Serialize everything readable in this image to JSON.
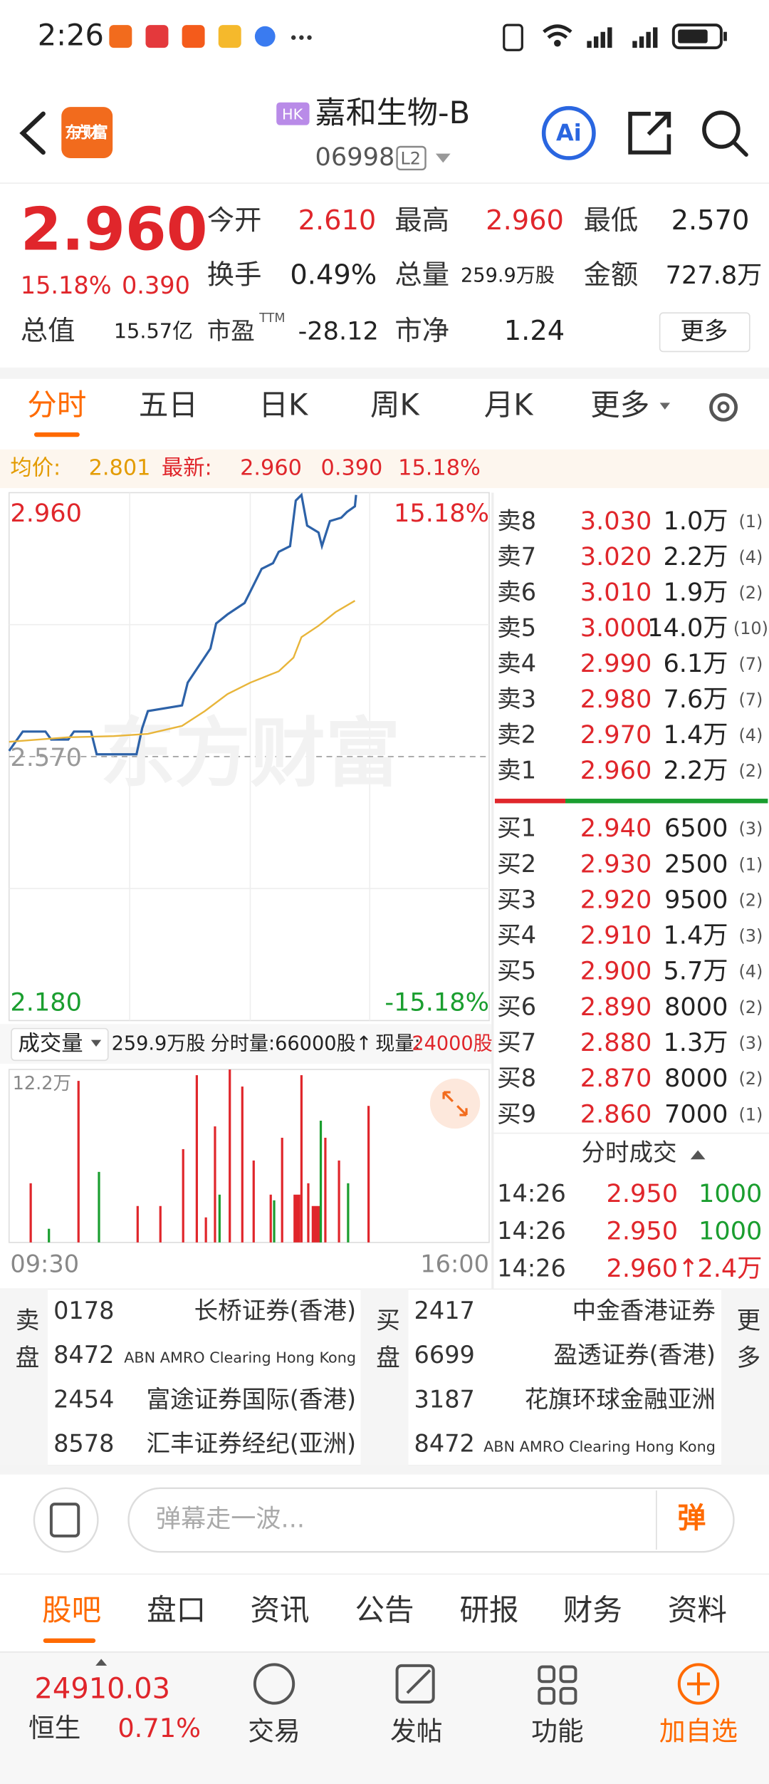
{
  "status_bar": {
    "time": "2:26"
  },
  "header": {
    "logo": "东方财富",
    "market": "HK",
    "title": "嘉和生物-B",
    "code": "06998",
    "level": "L2"
  },
  "quote": {
    "price": "2.960",
    "change_pct": "15.18%",
    "change": "0.390",
    "stats": [
      {
        "label": "今开",
        "value": "2.610"
      },
      {
        "label": "最高",
        "value": "2.960"
      },
      {
        "label": "最低",
        "value": "2.570"
      },
      {
        "label": "换手",
        "value": "0.49%"
      },
      {
        "label": "总量",
        "value": "259.9万股"
      },
      {
        "label": "金额",
        "value": "727.8万"
      },
      {
        "label": "总值",
        "value": "15.57亿"
      },
      {
        "label": "市盈",
        "sup": "TTM",
        "value": "-28.12"
      },
      {
        "label": "市净",
        "value": "1.24"
      }
    ],
    "more": "更多"
  },
  "tabs": [
    "分时",
    "五日",
    "日K",
    "周K",
    "月K",
    "更多"
  ],
  "summary": {
    "avg_label": "均价:",
    "avg": "2.801",
    "latest_label": "最新:",
    "latest": "2.960",
    "change": "0.390",
    "change_pct": "15.18%"
  },
  "chart": {
    "y_high": "2.960",
    "y_mid": "2.570",
    "y_low": "2.180",
    "pct_high": "15.18%",
    "pct_low": "-15.18%",
    "watermark": "东方财富",
    "time_start": "09:30",
    "time_end": "16:00"
  },
  "volume": {
    "label": "成交量",
    "total": "259.9万股",
    "tick": "分时量:66000股↑",
    "current_label": "现量:",
    "current": "24000股",
    "max": "12.2万"
  },
  "order_book": {
    "asks": [
      {
        "label": "卖8",
        "price": "3.030",
        "volume": "1.0万",
        "count": "(1)"
      },
      {
        "label": "卖7",
        "price": "3.020",
        "volume": "2.2万",
        "count": "(4)"
      },
      {
        "label": "卖6",
        "price": "3.010",
        "volume": "1.9万",
        "count": "(2)"
      },
      {
        "label": "卖5",
        "price": "3.000",
        "volume": "14.0万",
        "count": "(10)"
      },
      {
        "label": "卖4",
        "price": "2.990",
        "volume": "6.1万",
        "count": "(7)"
      },
      {
        "label": "卖3",
        "price": "2.980",
        "volume": "7.6万",
        "count": "(7)"
      },
      {
        "label": "卖2",
        "price": "2.970",
        "volume": "1.4万",
        "count": "(4)"
      },
      {
        "label": "卖1",
        "price": "2.960",
        "volume": "2.2万",
        "count": "(2)"
      }
    ],
    "bids": [
      {
        "label": "买1",
        "price": "2.940",
        "volume": "6500",
        "count": "(3)"
      },
      {
        "label": "买2",
        "price": "2.930",
        "volume": "2500",
        "count": "(1)"
      },
      {
        "label": "买3",
        "price": "2.920",
        "volume": "9500",
        "count": "(2)"
      },
      {
        "label": "买4",
        "price": "2.910",
        "volume": "1.4万",
        "count": "(3)"
      },
      {
        "label": "买5",
        "price": "2.900",
        "volume": "5.7万",
        "count": "(4)"
      },
      {
        "label": "买6",
        "price": "2.890",
        "volume": "8000",
        "count": "(2)"
      },
      {
        "label": "买7",
        "price": "2.880",
        "volume": "1.3万",
        "count": "(3)"
      },
      {
        "label": "买8",
        "price": "2.870",
        "volume": "8000",
        "count": "(2)"
      },
      {
        "label": "买9",
        "price": "2.860",
        "volume": "7000",
        "count": "(1)"
      }
    ]
  },
  "trades": {
    "title": "分时成交",
    "rows": [
      {
        "time": "14:26",
        "price": "2.950",
        "volume": "1000"
      },
      {
        "time": "14:26",
        "price": "2.950",
        "volume": "1000"
      },
      {
        "time": "14:26",
        "price": "2.960↑",
        "volume": "2.4万"
      }
    ]
  },
  "brokers": {
    "sell_label": "卖盘",
    "buy_label": "买盘",
    "more": "更多",
    "sell": [
      {
        "code": "0178",
        "name": "长桥证券(香港)"
      },
      {
        "code": "8472",
        "name": "ABN AMRO Clearing Hong Kong"
      },
      {
        "code": "2454",
        "name": "富途证券国际(香港)"
      },
      {
        "code": "8578",
        "name": "汇丰证券经纪(亚洲)"
      }
    ],
    "buy": [
      {
        "code": "2417",
        "name": "中金香港证券"
      },
      {
        "code": "6699",
        "name": "盈透证券(香港)"
      },
      {
        "code": "3187",
        "name": "花旗环球金融亚洲"
      },
      {
        "code": "8472",
        "name": "ABN AMRO Clearing Hong Kong"
      }
    ]
  },
  "comment": {
    "placeholder": "弹幕走一波...",
    "button": "弹"
  },
  "bottom_tabs": [
    "股吧",
    "盘口",
    "资讯",
    "公告",
    "研报",
    "财务",
    "资料"
  ],
  "footer": {
    "index_value": "24910.03",
    "index_name": "恒生",
    "index_pct": "0.71%",
    "actions": [
      "交易",
      "发帖",
      "功能",
      "加自选"
    ]
  }
}
